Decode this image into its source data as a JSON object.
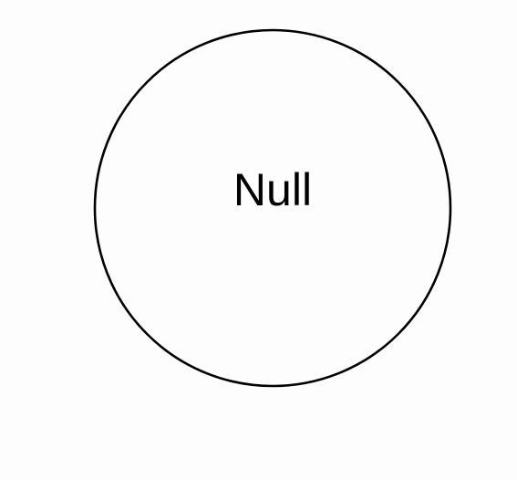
{
  "diagram": {
    "nodes": [
      {
        "label": "Null",
        "shape": "circle"
      }
    ],
    "colors": {
      "background": "#fdfdfd",
      "stroke": "#000000",
      "text": "#000000"
    }
  }
}
